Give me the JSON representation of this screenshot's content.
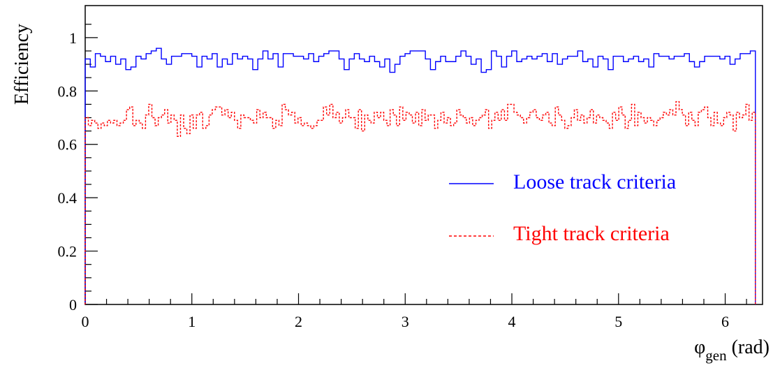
{
  "chart_data": {
    "type": "line",
    "title": "",
    "xlabel": "φ",
    "xlabel_sub": "gen",
    "xlabel_unit": "(rad)",
    "ylabel": "Efficiency",
    "xlim": [
      0,
      6.35
    ],
    "ylim": [
      0,
      1.12
    ],
    "xticks": [
      "0",
      "1",
      "2",
      "3",
      "4",
      "5",
      "6"
    ],
    "yticks": [
      "0",
      "0.2",
      "0.4",
      "0.6",
      "0.8",
      "1"
    ],
    "x_bin_edges": [
      0,
      6.283
    ],
    "grid": false,
    "legend_position": "right",
    "series": [
      {
        "name": "Loose track criteria",
        "color": "#0000ff",
        "style": "solid",
        "values": [
          0.92,
          0.89,
          0.94,
          0.93,
          0.91,
          0.93,
          0.9,
          0.92,
          0.88,
          0.89,
          0.93,
          0.92,
          0.94,
          0.95,
          0.96,
          0.92,
          0.9,
          0.93,
          0.93,
          0.94,
          0.94,
          0.93,
          0.89,
          0.93,
          0.92,
          0.94,
          0.89,
          0.92,
          0.9,
          0.94,
          0.92,
          0.93,
          0.92,
          0.88,
          0.92,
          0.95,
          0.92,
          0.94,
          0.89,
          0.94,
          0.94,
          0.93,
          0.93,
          0.92,
          0.94,
          0.91,
          0.93,
          0.94,
          0.95,
          0.95,
          0.92,
          0.88,
          0.92,
          0.94,
          0.92,
          0.91,
          0.93,
          0.91,
          0.89,
          0.92,
          0.87,
          0.9,
          0.93,
          0.94,
          0.95,
          0.95,
          0.95,
          0.92,
          0.88,
          0.91,
          0.93,
          0.91,
          0.91,
          0.93,
          0.95,
          0.93,
          0.9,
          0.92,
          0.87,
          0.88,
          0.95,
          0.93,
          0.89,
          0.93,
          0.95,
          0.91,
          0.92,
          0.93,
          0.92,
          0.93,
          0.94,
          0.91,
          0.94,
          0.9,
          0.92,
          0.93,
          0.93,
          0.95,
          0.91,
          0.92,
          0.89,
          0.93,
          0.92,
          0.88,
          0.93,
          0.93,
          0.91,
          0.92,
          0.93,
          0.91,
          0.92,
          0.89,
          0.94,
          0.93,
          0.93,
          0.92,
          0.93,
          0.93,
          0.94,
          0.91,
          0.89,
          0.91,
          0.93,
          0.93,
          0.93,
          0.92,
          0.93,
          0.9,
          0.92,
          0.94,
          0.94,
          0.95
        ]
      },
      {
        "name": "Tight track criteria",
        "color": "#ff0000",
        "style": "dashed",
        "values": [
          0.7,
          0.67,
          0.69,
          0.68,
          0.66,
          0.68,
          0.67,
          0.69,
          0.68,
          0.69,
          0.67,
          0.68,
          0.69,
          0.73,
          0.74,
          0.67,
          0.69,
          0.68,
          0.66,
          0.71,
          0.75,
          0.7,
          0.67,
          0.7,
          0.71,
          0.73,
          0.68,
          0.71,
          0.69,
          0.63,
          0.71,
          0.66,
          0.64,
          0.71,
          0.66,
          0.71,
          0.72,
          0.66,
          0.67,
          0.71,
          0.73,
          0.74,
          0.74,
          0.71,
          0.73,
          0.7,
          0.72,
          0.69,
          0.66,
          0.71,
          0.7,
          0.7,
          0.69,
          0.68,
          0.73,
          0.7,
          0.72,
          0.7,
          0.7,
          0.66,
          0.69,
          0.67,
          0.75,
          0.73,
          0.71,
          0.72,
          0.68,
          0.7,
          0.67,
          0.68,
          0.67,
          0.66,
          0.67,
          0.69,
          0.69,
          0.74,
          0.71,
          0.75,
          0.7,
          0.72,
          0.68,
          0.7,
          0.73,
          0.7,
          0.7,
          0.66,
          0.73,
          0.65,
          0.71,
          0.69,
          0.68,
          0.72,
          0.7,
          0.72,
          0.69,
          0.67,
          0.73,
          0.71,
          0.67,
          0.74,
          0.69,
          0.72,
          0.71,
          0.68,
          0.72,
          0.67,
          0.73,
          0.69,
          0.71,
          0.71,
          0.66,
          0.69,
          0.72,
          0.68,
          0.7,
          0.67,
          0.68,
          0.73,
          0.71,
          0.7,
          0.68,
          0.7,
          0.67,
          0.69,
          0.7,
          0.71,
          0.73,
          0.66,
          0.69,
          0.72,
          0.69,
          0.73,
          0.69,
          0.75,
          0.75,
          0.72,
          0.71,
          0.7,
          0.68,
          0.7,
          0.72,
          0.73,
          0.7,
          0.69,
          0.71,
          0.72,
          0.68,
          0.67,
          0.74,
          0.71,
          0.69,
          0.66,
          0.67,
          0.7,
          0.73,
          0.69,
          0.71,
          0.68,
          0.7,
          0.73,
          0.68,
          0.71,
          0.7,
          0.69,
          0.68,
          0.66,
          0.72,
          0.69,
          0.74,
          0.71,
          0.66,
          0.69,
          0.75,
          0.67,
          0.72,
          0.7,
          0.68,
          0.7,
          0.69,
          0.67,
          0.69,
          0.7,
          0.72,
          0.71,
          0.73,
          0.71,
          0.76,
          0.73,
          0.71,
          0.67,
          0.72,
          0.69,
          0.67,
          0.72,
          0.73,
          0.74,
          0.7,
          0.67,
          0.72,
          0.68,
          0.67,
          0.7,
          0.72,
          0.71,
          0.65,
          0.72,
          0.7,
          0.71,
          0.75,
          0.69,
          0.72
        ]
      }
    ]
  }
}
